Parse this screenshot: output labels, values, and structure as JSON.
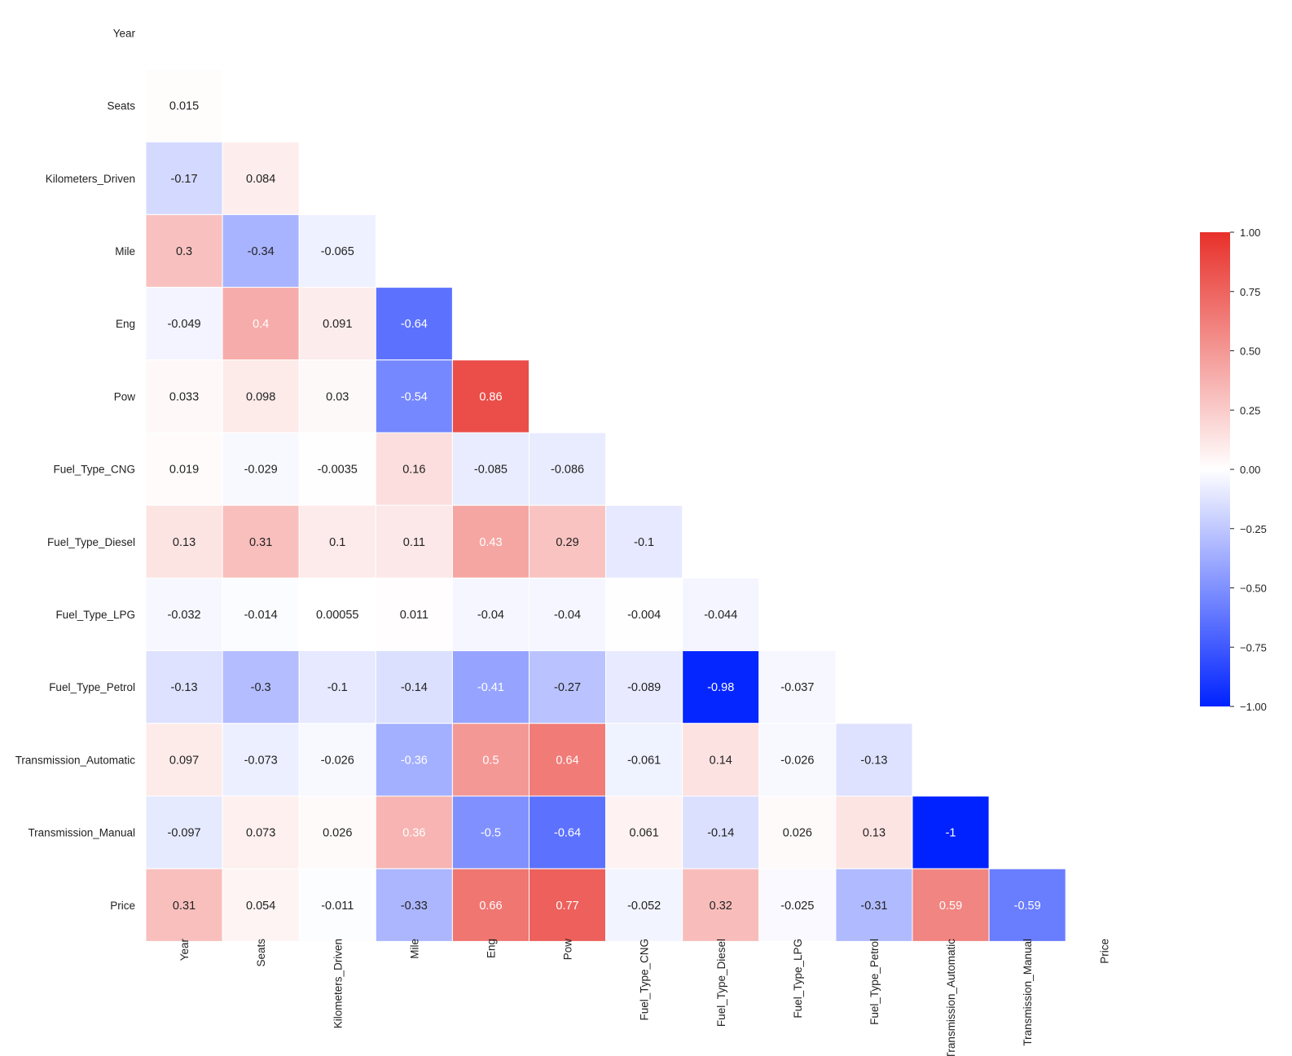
{
  "chart_data": {
    "type": "heatmap",
    "title": "",
    "variables": [
      "Year",
      "Seats",
      "Kilometers_Driven",
      "Mile",
      "Eng",
      "Pow",
      "Fuel_Type_CNG",
      "Fuel_Type_Diesel",
      "Fuel_Type_LPG",
      "Fuel_Type_Petrol",
      "Transmission_Automatic",
      "Transmission_Manual",
      "Price"
    ],
    "mask": "upper-triangle including diagonal",
    "values": [
      [],
      [
        "0.015"
      ],
      [
        "-0.17",
        "0.084"
      ],
      [
        "0.3",
        "-0.34",
        "-0.065"
      ],
      [
        "-0.049",
        "0.4",
        "0.091",
        "-0.64"
      ],
      [
        "0.033",
        "0.098",
        "0.03",
        "-0.54",
        "0.86"
      ],
      [
        "0.019",
        "-0.029",
        "-0.0035",
        "0.16",
        "-0.085",
        "-0.086"
      ],
      [
        "0.13",
        "0.31",
        "0.1",
        "0.11",
        "0.43",
        "0.29",
        "-0.1"
      ],
      [
        "-0.032",
        "-0.014",
        "0.00055",
        "0.011",
        "-0.04",
        "-0.04",
        "-0.004",
        "-0.044"
      ],
      [
        "-0.13",
        "-0.3",
        "-0.1",
        "-0.14",
        "-0.41",
        "-0.27",
        "-0.089",
        "-0.98",
        "-0.037"
      ],
      [
        "0.097",
        "-0.073",
        "-0.026",
        "-0.36",
        "0.5",
        "0.64",
        "-0.061",
        "0.14",
        "-0.026",
        "-0.13"
      ],
      [
        "-0.097",
        "0.073",
        "0.026",
        "0.36",
        "-0.5",
        "-0.64",
        "0.061",
        "-0.14",
        "0.026",
        "0.13",
        "-1"
      ],
      [
        "0.31",
        "0.054",
        "-0.011",
        "-0.33",
        "0.66",
        "0.77",
        "-0.052",
        "0.32",
        "-0.025",
        "-0.31",
        "0.59",
        "-0.59"
      ]
    ],
    "colorbar": {
      "range": [
        -1.0,
        1.0
      ],
      "ticks": [
        "1.00",
        "0.75",
        "0.50",
        "0.25",
        "0.00",
        "−0.25",
        "−0.50",
        "−0.75",
        "−1.00"
      ],
      "colors": {
        "low": "#0022ff",
        "mid": "#ffffff",
        "high": "#e8302a"
      }
    }
  }
}
